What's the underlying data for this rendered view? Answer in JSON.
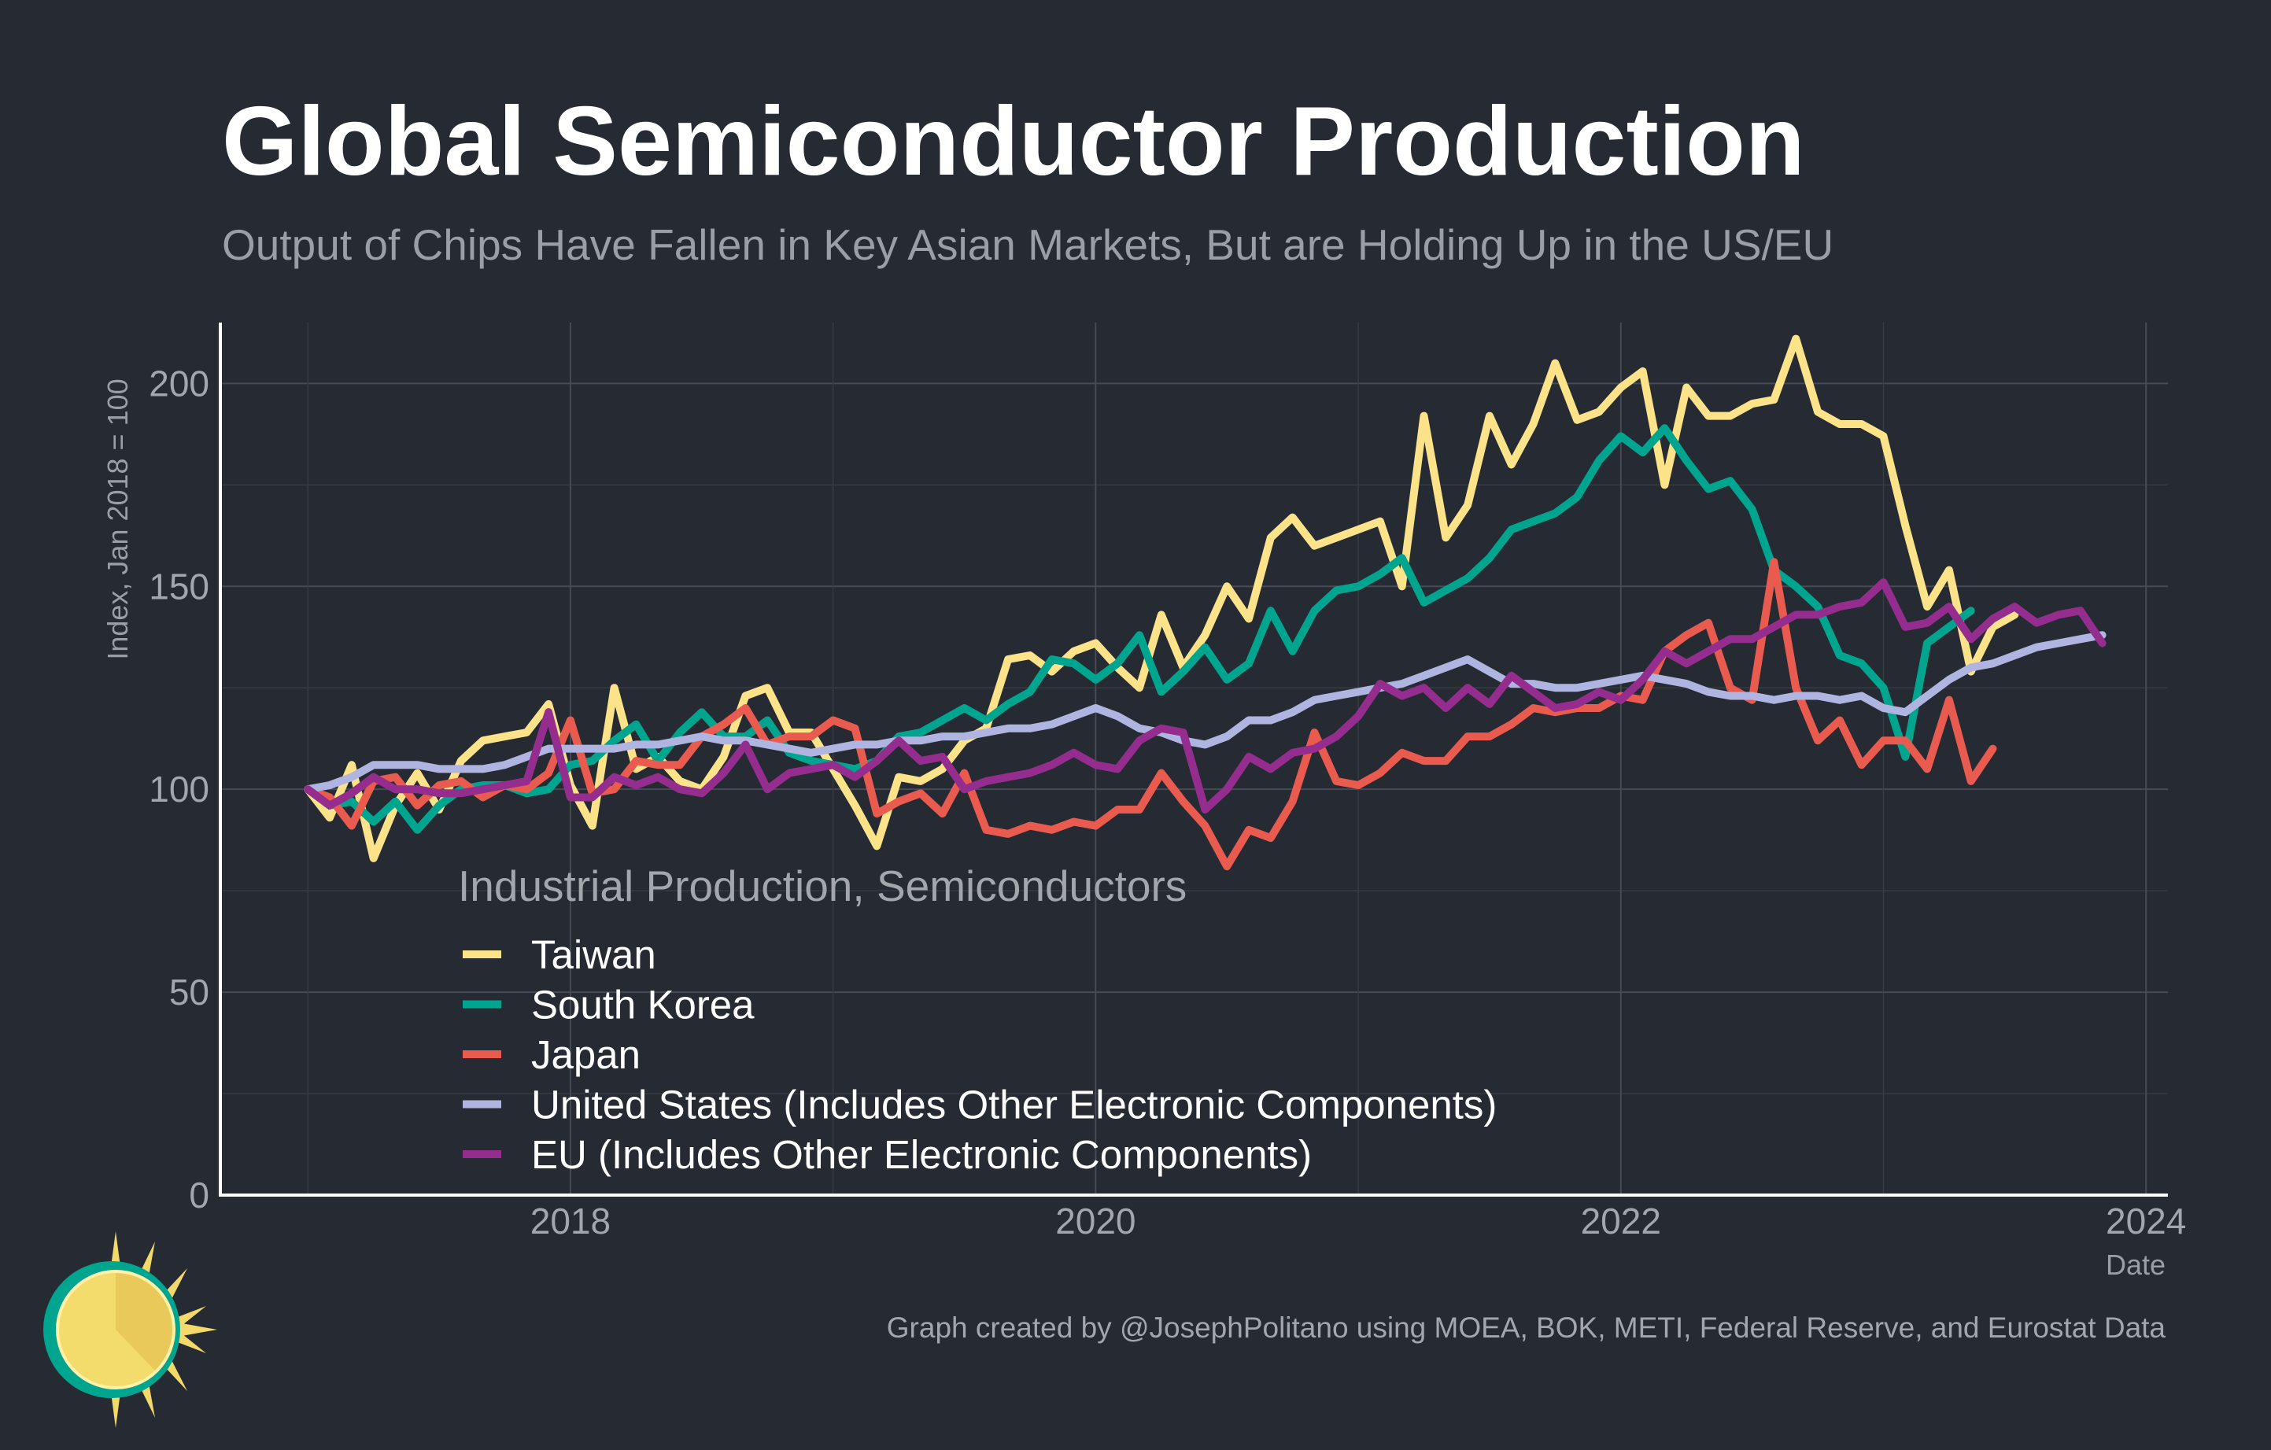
{
  "chart_data": {
    "type": "line",
    "title": "Global Semiconductor Production",
    "subtitle": "Output of Chips Have Fallen in Key Asian Markets, But are Holding Up in the US/EU",
    "xlabel": "Date",
    "ylabel": "Index, Jan 2018 = 100",
    "x_start": "2017-01",
    "x_frequency": "monthly",
    "xlim": [
      "2016-09",
      "2024-02"
    ],
    "ylim": [
      0,
      215
    ],
    "x_ticks": [
      "2018",
      "2020",
      "2022",
      "2024"
    ],
    "y_ticks": [
      0,
      50,
      100,
      150,
      200
    ],
    "grid": true,
    "legend_title": "Industrial Production, Semiconductors",
    "legend_position": "lower-left",
    "caption": "Graph created by @JosephPolitano using MOEA, BOK, METI, Federal Reserve, and Eurostat Data",
    "series": [
      {
        "name": "Taiwan",
        "color": "#fce38a",
        "values": [
          100,
          93,
          106,
          83,
          96,
          104,
          95,
          107,
          112,
          113,
          114,
          121,
          101,
          91,
          125,
          105,
          108,
          102,
          100,
          108,
          123,
          125,
          114,
          114,
          105,
          96,
          86,
          103,
          102,
          105,
          112,
          115,
          132,
          133,
          129,
          134,
          136,
          130,
          125,
          143,
          130,
          138,
          150,
          142,
          162,
          167,
          160,
          162,
          164,
          166,
          150,
          192,
          162,
          170,
          192,
          180,
          190,
          205,
          191,
          193,
          199,
          203,
          175,
          199,
          192,
          192,
          195,
          196,
          211,
          193,
          190,
          190,
          187,
          165,
          145,
          154,
          129,
          140,
          143
        ]
      },
      {
        "name": "South Korea",
        "color": "#00a58f",
        "values": [
          100,
          96,
          97,
          92,
          97,
          90,
          96,
          100,
          101,
          101,
          99,
          100,
          106,
          107,
          112,
          116,
          107,
          114,
          119,
          113,
          113,
          117,
          109,
          107,
          106,
          105,
          107,
          113,
          114,
          117,
          120,
          117,
          121,
          124,
          132,
          131,
          127,
          131,
          138,
          124,
          129,
          135,
          127,
          131,
          144,
          134,
          144,
          149,
          150,
          153,
          157,
          146,
          149,
          152,
          157,
          164,
          166,
          168,
          172,
          181,
          187,
          183,
          189,
          181,
          174,
          176,
          169,
          154,
          150,
          145,
          133,
          131,
          125,
          108,
          136,
          140,
          144
        ]
      },
      {
        "name": "Japan",
        "color": "#ea5b4f",
        "values": [
          100,
          98,
          91,
          102,
          103,
          96,
          101,
          102,
          98,
          101,
          100,
          104,
          117,
          99,
          100,
          107,
          106,
          106,
          113,
          116,
          120,
          111,
          113,
          113,
          117,
          115,
          94,
          97,
          99,
          94,
          104,
          90,
          89,
          91,
          90,
          92,
          91,
          95,
          95,
          104,
          97,
          91,
          81,
          90,
          88,
          97,
          114,
          102,
          101,
          104,
          109,
          107,
          107,
          113,
          113,
          116,
          120,
          119,
          120,
          120,
          123,
          122,
          134,
          138,
          141,
          125,
          122,
          156,
          125,
          112,
          117,
          106,
          112,
          112,
          105,
          122,
          102,
          110
        ]
      },
      {
        "name": "United States (Includes Other Electronic Components)",
        "color": "#b0b4e0",
        "values": [
          100,
          101,
          103,
          106,
          106,
          106,
          105,
          105,
          105,
          106,
          108,
          110,
          110,
          110,
          110,
          111,
          111,
          112,
          113,
          112,
          112,
          111,
          110,
          109,
          110,
          111,
          111,
          112,
          112,
          113,
          113,
          114,
          115,
          115,
          116,
          118,
          120,
          118,
          115,
          114,
          112,
          111,
          113,
          117,
          117,
          119,
          122,
          123,
          124,
          125,
          126,
          128,
          130,
          132,
          129,
          126,
          126,
          125,
          125,
          126,
          127,
          128,
          127,
          126,
          124,
          123,
          123,
          122,
          123,
          123,
          122,
          123,
          120,
          119,
          123,
          127,
          130,
          131,
          133,
          135,
          136,
          137,
          138
        ]
      },
      {
        "name": "EU (Includes Other Electronic Components)",
        "color": "#952d8f",
        "values": [
          100,
          96,
          99,
          103,
          100,
          100,
          99,
          99,
          100,
          101,
          102,
          119,
          98,
          98,
          103,
          101,
          103,
          100,
          99,
          104,
          111,
          100,
          104,
          105,
          106,
          103,
          107,
          112,
          107,
          108,
          100,
          102,
          103,
          104,
          106,
          109,
          106,
          105,
          112,
          115,
          114,
          95,
          100,
          108,
          105,
          109,
          110,
          113,
          118,
          126,
          123,
          125,
          120,
          125,
          121,
          128,
          124,
          120,
          121,
          124,
          122,
          127,
          134,
          131,
          134,
          137,
          137,
          140,
          143,
          143,
          145,
          146,
          151,
          140,
          141,
          145,
          137,
          142,
          145,
          141,
          143,
          144,
          136
        ]
      }
    ]
  }
}
